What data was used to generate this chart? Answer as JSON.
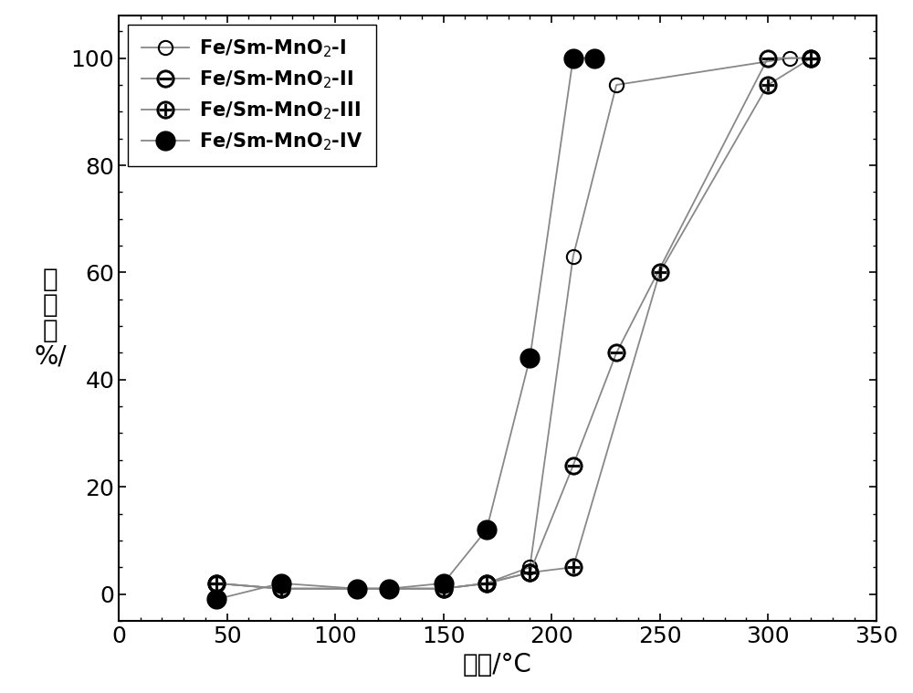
{
  "series": [
    {
      "label": "Fe/Sm-MnO$_2$-I",
      "x": [
        45,
        75,
        110,
        125,
        150,
        170,
        190,
        210,
        230,
        310,
        320
      ],
      "y": [
        2,
        1,
        1,
        1,
        1,
        2,
        5,
        63,
        95,
        100,
        100
      ],
      "marker_type": "open_circle"
    },
    {
      "label": "Fe/Sm-MnO$_2$-II",
      "x": [
        45,
        75,
        110,
        125,
        150,
        170,
        190,
        210,
        230,
        300,
        320
      ],
      "y": [
        2,
        1,
        1,
        1,
        1,
        2,
        4,
        24,
        45,
        100,
        100
      ],
      "marker_type": "ominus"
    },
    {
      "label": "Fe/Sm-MnO$_2$-III",
      "x": [
        45,
        75,
        110,
        125,
        150,
        170,
        190,
        210,
        250,
        300,
        320
      ],
      "y": [
        2,
        1,
        1,
        1,
        1,
        2,
        4,
        5,
        60,
        95,
        100
      ],
      "marker_type": "oplus"
    },
    {
      "label": "Fe/Sm-MnO$_2$-IV",
      "x": [
        45,
        75,
        110,
        125,
        150,
        170,
        190,
        210,
        220
      ],
      "y": [
        -1,
        2,
        1,
        1,
        2,
        12,
        44,
        100,
        100
      ],
      "marker_type": "filled_circle"
    }
  ],
  "xlabel": "温度/°C",
  "ylabel_lines": [
    "转",
    "化",
    "率",
    "%/"
  ],
  "xlim": [
    0,
    350
  ],
  "ylim": [
    -5,
    108
  ],
  "xticks": [
    0,
    50,
    100,
    150,
    200,
    250,
    300,
    350
  ],
  "yticks": [
    0,
    20,
    40,
    60,
    80,
    100
  ],
  "figsize": [
    10.0,
    7.59
  ],
  "dpi": 100,
  "line_color": "#888888",
  "marker_color": "#000000",
  "font_size_axis": 20,
  "font_size_legend": 15,
  "font_size_ticks": 18,
  "font_size_ylabel": 20,
  "markersize_open": 11,
  "markersize_symbol": 14,
  "markersize_filled": 15,
  "linewidth": 1.3
}
